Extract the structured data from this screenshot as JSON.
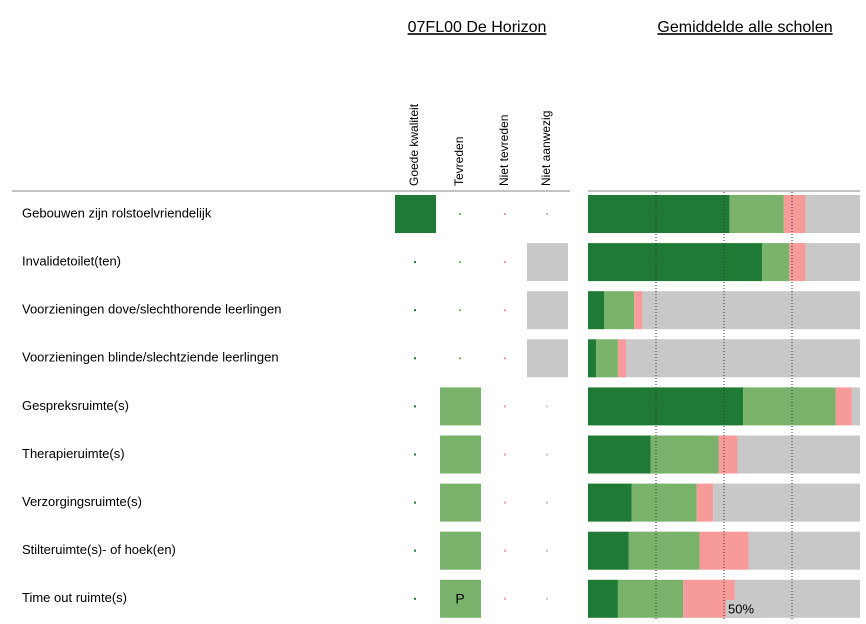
{
  "school_title": "07FL00 De Horizon",
  "columns": [
    "Goede kwaliteit",
    "Tevreden",
    "Niet tevreden",
    "Niet aanwezig"
  ],
  "column_colors": [
    "#1e7a34",
    "#79b26b",
    "#f79a9a",
    "#c8c8c8"
  ],
  "school_responses": [
    0,
    3,
    3,
    3,
    1,
    1,
    1,
    1,
    1
  ],
  "school_labels": [
    null,
    null,
    null,
    null,
    null,
    null,
    null,
    null,
    "P"
  ],
  "chart_data": {
    "type": "bar",
    "orientation": "horizontal",
    "stacked": true,
    "title": "Gemiddelde alle scholen",
    "categories": [
      "Gebouwen zijn rolstoelvriendelijk",
      "Invalidetoilet(ten)",
      "Voorzieningen dove/slechthorende leerlingen",
      "Voorzieningen blinde/slechtziende leerlingen",
      "Gespreksruimte(s)",
      "Therapieruimte(s)",
      "Verzorgingsruimte(s)",
      "Stilteruimte(s)- of hoek(en)",
      "Time out ruimte(s)"
    ],
    "series": [
      {
        "color": "#1e7a34",
        "values": [
          52,
          64,
          6,
          3,
          57,
          23,
          16,
          15,
          11
        ]
      },
      {
        "color": "#79b26b",
        "values": [
          20,
          10,
          11,
          8,
          34,
          25,
          24,
          26,
          24
        ]
      },
      {
        "color": "#f79a9a",
        "values": [
          8,
          6,
          3,
          3,
          6,
          7,
          6,
          18,
          19
        ]
      },
      {
        "color": "#c8c8c8",
        "values": [
          20,
          20,
          80,
          86,
          3,
          45,
          54,
          41,
          46
        ]
      }
    ],
    "xlim": [
      0,
      100
    ],
    "xticks": [
      25,
      {
        "value": 50,
        "label": "50%"
      },
      75
    ],
    "grid": true
  }
}
